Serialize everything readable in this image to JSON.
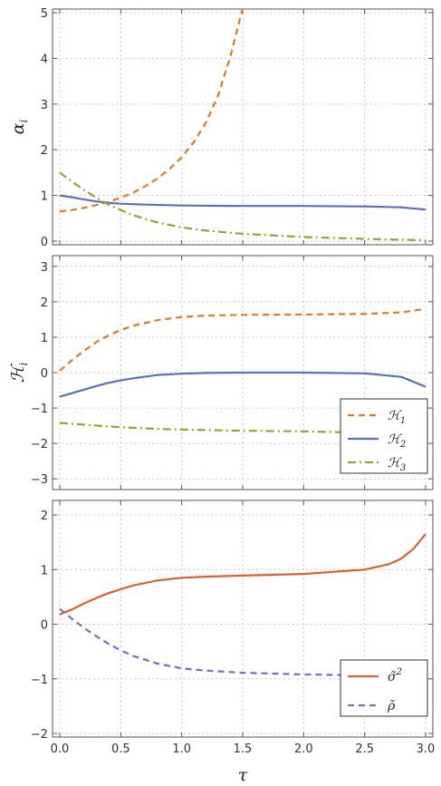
{
  "chart_data": [
    {
      "type": "line",
      "ylabel": "αi",
      "ylabel_main": "α",
      "ylabel_sub": "i",
      "xlabel": "",
      "xlim": [
        0,
        3
      ],
      "ylim": [
        0,
        5
      ],
      "xticks": [
        0,
        0.5,
        1,
        1.5,
        2,
        2.5,
        3
      ],
      "yticks": [
        0,
        1,
        2,
        3,
        4,
        5
      ],
      "ytick_labels": [
        "0",
        "1",
        "2",
        "3",
        "4",
        "5"
      ],
      "grid": true,
      "series": [
        {
          "color": "#E07A1F",
          "dash": "dashed",
          "x": [
            0,
            0.1,
            0.2,
            0.3,
            0.4,
            0.5,
            0.6,
            0.7,
            0.8,
            0.9,
            1.0,
            1.1,
            1.2,
            1.3,
            1.4,
            1.5
          ],
          "y": [
            0.65,
            0.68,
            0.73,
            0.79,
            0.86,
            0.95,
            1.06,
            1.2,
            1.37,
            1.58,
            1.84,
            2.17,
            2.6,
            3.2,
            4.05,
            5.1
          ]
        },
        {
          "color": "#5B71B5",
          "dash": "solid",
          "x": [
            0,
            0.1,
            0.2,
            0.3,
            0.4,
            0.5,
            0.7,
            1.0,
            1.5,
            2.0,
            2.5,
            2.8,
            3.0
          ],
          "y": [
            1.0,
            0.96,
            0.91,
            0.87,
            0.84,
            0.82,
            0.8,
            0.78,
            0.77,
            0.77,
            0.76,
            0.74,
            0.69
          ]
        },
        {
          "color": "#8BA933",
          "dash": "dashdot",
          "x": [
            0,
            0.1,
            0.2,
            0.3,
            0.4,
            0.5,
            0.6,
            0.8,
            1.0,
            1.2,
            1.5,
            2.0,
            2.5,
            3.0
          ],
          "y": [
            1.5,
            1.3,
            1.12,
            0.95,
            0.8,
            0.68,
            0.57,
            0.41,
            0.3,
            0.23,
            0.16,
            0.09,
            0.05,
            0.02
          ]
        }
      ]
    },
    {
      "type": "line",
      "ylabel": "ℋi",
      "ylabel_main": "ℋ",
      "ylabel_sub": "i",
      "xlabel": "",
      "xlim": [
        0,
        3
      ],
      "ylim": [
        -3.2,
        3.2
      ],
      "xticks": [
        0,
        0.5,
        1,
        1.5,
        2,
        2.5,
        3
      ],
      "yticks": [
        -3,
        -2,
        -1,
        0,
        1,
        2,
        3
      ],
      "ytick_labels": [
        "−3",
        "−2",
        "−1",
        "0",
        "1",
        "2",
        "3"
      ],
      "grid": true,
      "legend": {
        "position": "bottom-right",
        "entries": [
          {
            "label": "ℋ1",
            "main": "ℋ",
            "sub": "1",
            "color": "#E07A1F",
            "dash": "dashed"
          },
          {
            "label": "ℋ2",
            "main": "ℋ",
            "sub": "2",
            "color": "#5B71B5",
            "dash": "solid"
          },
          {
            "label": "ℋ3",
            "main": "ℋ",
            "sub": "3",
            "color": "#8BA933",
            "dash": "dashdot"
          }
        ]
      },
      "series": [
        {
          "name": "ℋ1",
          "color": "#E07A1F",
          "dash": "dashed",
          "x": [
            0,
            0.1,
            0.2,
            0.3,
            0.4,
            0.5,
            0.6,
            0.8,
            1.0,
            1.2,
            1.5,
            2.0,
            2.5,
            2.8,
            3.0
          ],
          "y": [
            0.05,
            0.35,
            0.62,
            0.86,
            1.05,
            1.2,
            1.32,
            1.48,
            1.57,
            1.61,
            1.63,
            1.64,
            1.66,
            1.7,
            1.8
          ]
        },
        {
          "name": "ℋ2",
          "color": "#5B71B5",
          "dash": "solid",
          "x": [
            0,
            0.1,
            0.2,
            0.3,
            0.4,
            0.5,
            0.6,
            0.8,
            1.0,
            1.2,
            1.5,
            2.0,
            2.5,
            2.8,
            3.0
          ],
          "y": [
            -0.68,
            -0.58,
            -0.48,
            -0.38,
            -0.29,
            -0.22,
            -0.16,
            -0.07,
            -0.03,
            -0.01,
            0.0,
            0.0,
            -0.02,
            -0.12,
            -0.4
          ]
        },
        {
          "name": "ℋ3",
          "color": "#8BA933",
          "dash": "dashdot",
          "x": [
            0,
            0.2,
            0.4,
            0.6,
            0.8,
            1.0,
            1.5,
            2.0,
            2.5,
            2.8,
            3.0
          ],
          "y": [
            -1.42,
            -1.47,
            -1.52,
            -1.56,
            -1.59,
            -1.61,
            -1.64,
            -1.66,
            -1.7,
            -1.85,
            -2.55
          ]
        }
      ]
    },
    {
      "type": "line",
      "ylabel": "",
      "xlabel": "τ",
      "xlim": [
        0,
        3
      ],
      "ylim": [
        -2,
        2.2
      ],
      "xticks": [
        0,
        0.5,
        1,
        1.5,
        2,
        2.5,
        3
      ],
      "xtick_labels": [
        "0.0",
        "0.5",
        "1.0",
        "1.5",
        "2.0",
        "2.5",
        "3.0"
      ],
      "yticks": [
        -2,
        -1,
        0,
        1,
        2
      ],
      "ytick_labels": [
        "−2",
        "−1",
        "0",
        "1",
        "2"
      ],
      "grid": true,
      "legend": {
        "position": "bottom-right",
        "entries": [
          {
            "label": "σ̃2",
            "main": "σ̃",
            "sup": "2",
            "color": "#D9612F",
            "dash": "solid"
          },
          {
            "label": "ρ̃",
            "main": "ρ̃",
            "color": "#7A6CC4",
            "dash": "dashed"
          }
        ]
      },
      "series": [
        {
          "name": "σ̃2",
          "color": "#D9612F",
          "dash": "solid",
          "x": [
            0,
            0.1,
            0.2,
            0.3,
            0.4,
            0.5,
            0.6,
            0.8,
            1.0,
            1.2,
            1.5,
            2.0,
            2.5,
            2.7,
            2.8,
            2.9,
            3.0
          ],
          "y": [
            0.18,
            0.27,
            0.38,
            0.48,
            0.57,
            0.64,
            0.71,
            0.8,
            0.85,
            0.87,
            0.89,
            0.92,
            1.0,
            1.1,
            1.2,
            1.38,
            1.65
          ]
        },
        {
          "name": "ρ̃",
          "color": "#7A6CC4",
          "dash": "dashed",
          "x": [
            0,
            0.1,
            0.2,
            0.3,
            0.4,
            0.5,
            0.6,
            0.8,
            1.0,
            1.2,
            1.5,
            2.0,
            2.5,
            2.8,
            2.9,
            3.0
          ],
          "y": [
            0.28,
            0.1,
            -0.07,
            -0.22,
            -0.36,
            -0.48,
            -0.58,
            -0.72,
            -0.81,
            -0.85,
            -0.89,
            -0.92,
            -0.94,
            -1.0,
            -1.15,
            -1.52
          ]
        }
      ]
    }
  ]
}
